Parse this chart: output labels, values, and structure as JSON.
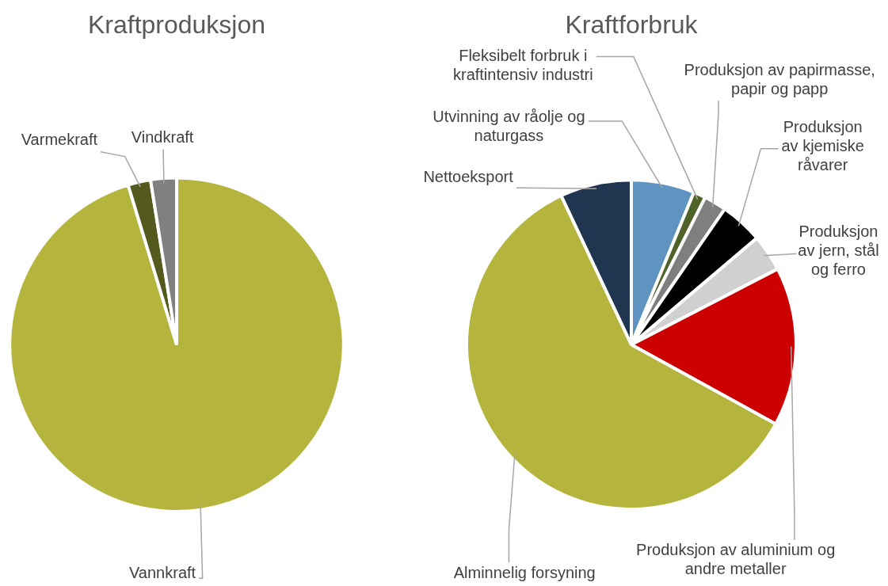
{
  "chart_data": [
    {
      "type": "pie",
      "title": "Kraftproduksjon",
      "categories": [
        "Vannkraft",
        "Varmekraft",
        "Vindkraft"
      ],
      "values": [
        95.3,
        2.2,
        2.5
      ],
      "colors": [
        "#b5b43c",
        "#545a1e",
        "#808080"
      ]
    },
    {
      "type": "pie",
      "title": "Kraftforbruk",
      "categories": [
        "Utvinning av råolje og naturgass",
        "Fleksibelt forbruk i kraftintensiv industri",
        "Produksjon av papirmasse, papir og papp",
        "Produksjon av kjemiske råvarer",
        "Produksjon av jern, stål og ferro",
        "Produksjon av aluminium og andre metaller",
        "Alminnelig forsyning",
        "Nettoeksport"
      ],
      "values": [
        6.2,
        1.2,
        2.2,
        4.2,
        3.6,
        15.6,
        60.0,
        7.0
      ],
      "colors": [
        "#5f94c1",
        "#4f6228",
        "#7f7f7f",
        "#000000",
        "#d0d0d0",
        "#cc0000",
        "#b5b43c",
        "#1f3550"
      ]
    }
  ]
}
